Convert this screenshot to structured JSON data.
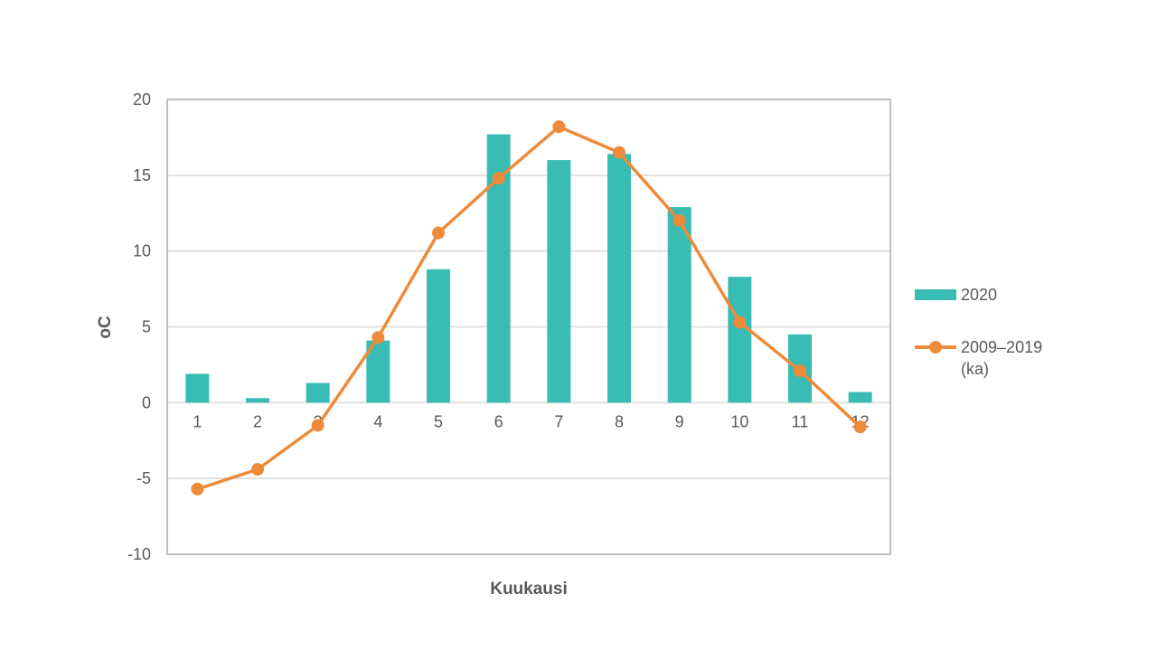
{
  "chart_data": {
    "type": "bar",
    "combo": "bar+line",
    "title": "",
    "xlabel": "Kuukausi",
    "ylabel": "oC",
    "categories": [
      "1",
      "2",
      "3",
      "4",
      "5",
      "6",
      "7",
      "8",
      "9",
      "10",
      "11",
      "12"
    ],
    "series": [
      {
        "name": "2020",
        "type": "bar",
        "color": "#39bcb4",
        "values": [
          1.9,
          0.3,
          1.3,
          4.1,
          8.8,
          17.7,
          16.0,
          16.4,
          12.9,
          8.3,
          4.5,
          0.7
        ]
      },
      {
        "name": "2009–2019 (ka)",
        "type": "line",
        "color": "#ed8b3b",
        "values": [
          -5.7,
          -4.4,
          -1.5,
          4.3,
          11.2,
          14.8,
          18.2,
          16.5,
          12.0,
          5.3,
          2.1,
          -1.6
        ]
      }
    ],
    "ylim": [
      -10,
      20
    ],
    "yticks": [
      20,
      15,
      10,
      5,
      0,
      -5,
      -10
    ],
    "grid": true,
    "legend_position": "right"
  },
  "legend": {
    "items": [
      {
        "label": "2020",
        "swatch": "bar-swatch",
        "color": "#39bcb4"
      },
      {
        "label": "2009–2019\n(ka)",
        "swatch": "line-marker-swatch",
        "color": "#ed8b3b"
      }
    ]
  },
  "style_colors": {
    "gridline": "#d9d9d9",
    "plot_border": "#bfbfbf",
    "tick_text": "#595959"
  }
}
